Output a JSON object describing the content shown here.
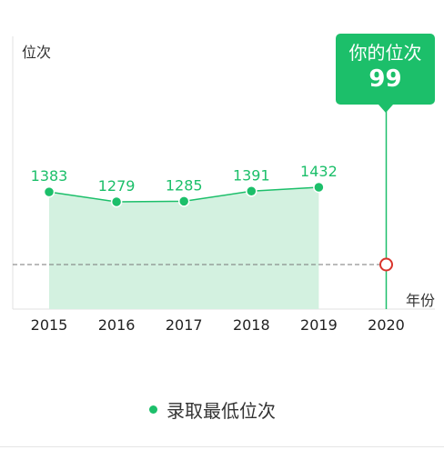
{
  "chart_data": {
    "type": "line",
    "ylabel": "位次",
    "xlabel": "年份",
    "categories": [
      "2015",
      "2016",
      "2017",
      "2018",
      "2019",
      "2020"
    ],
    "series": [
      {
        "name": "录取最低位次",
        "values": [
          1383,
          1279,
          1285,
          1391,
          1432,
          null
        ]
      }
    ],
    "data_labels": [
      "1383",
      "1279",
      "1285",
      "1391",
      "1432"
    ],
    "highlight": {
      "category": "2020",
      "label": "你的位次",
      "value": 99
    },
    "area_fill": true,
    "colors": {
      "series": "#1cbf6a",
      "area": "#d3f1e0",
      "marker": "#d9342b"
    }
  },
  "legend": {
    "label": "录取最低位次"
  },
  "tooltip": {
    "title": "你的位次",
    "value": "99"
  }
}
